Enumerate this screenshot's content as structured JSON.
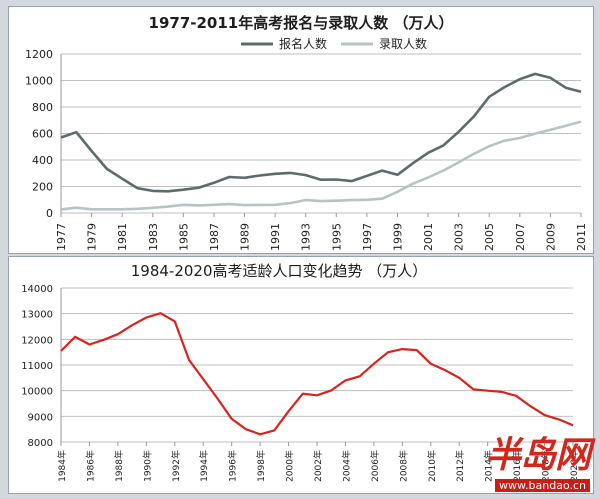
{
  "colors": {
    "applicants": "#5f6a6d",
    "admitted": "#b9c2c4",
    "population": "#d9241b",
    "grid": "#bfbfbf",
    "watermark": "#d3261c"
  },
  "watermark": {
    "text": "半岛网",
    "url": "www.bandao.cn"
  },
  "chart_data": [
    {
      "type": "line",
      "title": "1977-2011年高考报名与录取人数 （万人）",
      "legend_position": "top-center",
      "grid": true,
      "ylim": [
        0,
        1200
      ],
      "yticks": [
        0,
        200,
        400,
        600,
        800,
        1000,
        1200
      ],
      "xticks": [
        "1977",
        "1979",
        "1981",
        "1983",
        "1985",
        "1987",
        "1989",
        "1991",
        "1993",
        "1995",
        "1997",
        "1999",
        "2001",
        "2003",
        "2005",
        "2007",
        "2009",
        "2011"
      ],
      "x": [
        1977,
        1978,
        1979,
        1980,
        1981,
        1982,
        1983,
        1984,
        1985,
        1986,
        1987,
        1988,
        1989,
        1990,
        1991,
        1992,
        1993,
        1994,
        1995,
        1996,
        1997,
        1998,
        1999,
        2000,
        2001,
        2002,
        2003,
        2004,
        2005,
        2006,
        2007,
        2008,
        2009,
        2010,
        2011
      ],
      "series": [
        {
          "name": "报名人数",
          "values": [
            570,
            610,
            468,
            333,
            259,
            187,
            167,
            164,
            176,
            191,
            228,
            272,
            266,
            283,
            296,
            303,
            286,
            251,
            253,
            241,
            280,
            320,
            288,
            375,
            454,
            510,
            613,
            729,
            877,
            950,
            1010,
            1050,
            1020,
            946,
            915
          ]
        },
        {
          "name": "录取人数",
          "values": [
            27,
            40,
            28,
            28,
            28,
            32,
            39,
            48,
            62,
            57,
            62,
            67,
            60,
            61,
            62,
            75,
            98,
            90,
            93,
            97,
            100,
            108,
            160,
            221,
            268,
            320,
            382,
            447,
            504,
            546,
            566,
            599,
            629,
            657,
            690
          ]
        }
      ]
    },
    {
      "type": "line",
      "title": "1984-2020高考适龄人口变化趋势 （万人）",
      "grid": true,
      "ylim": [
        8000,
        14000
      ],
      "yticks": [
        8000,
        9000,
        10000,
        11000,
        12000,
        13000,
        14000
      ],
      "xticks": [
        "1984年",
        "1986年",
        "1988年",
        "1990年",
        "1992年",
        "1994年",
        "1996年",
        "1998年",
        "2000年",
        "2002年",
        "2004年",
        "2006年",
        "2008年",
        "2010年",
        "2012年",
        "2014年",
        "2016年",
        "2018年",
        "2020年"
      ],
      "x": [
        1984,
        1985,
        1986,
        1987,
        1988,
        1989,
        1990,
        1991,
        1992,
        1993,
        1994,
        1995,
        1996,
        1997,
        1998,
        1999,
        2000,
        2001,
        2002,
        2003,
        2004,
        2005,
        2006,
        2007,
        2008,
        2009,
        2010,
        2011,
        2012,
        2013,
        2014,
        2015,
        2016,
        2017,
        2018,
        2019,
        2020
      ],
      "series": [
        {
          "values": [
            11550,
            12100,
            11800,
            11980,
            12200,
            12550,
            12850,
            13020,
            12700,
            11200,
            10450,
            9700,
            8900,
            8500,
            8300,
            8450,
            9200,
            9880,
            9820,
            10010,
            10400,
            10560,
            11050,
            11500,
            11620,
            11580,
            11050,
            10800,
            10500,
            10050,
            10000,
            9950,
            9800,
            9400,
            9050,
            8880,
            8650
          ]
        }
      ]
    }
  ]
}
